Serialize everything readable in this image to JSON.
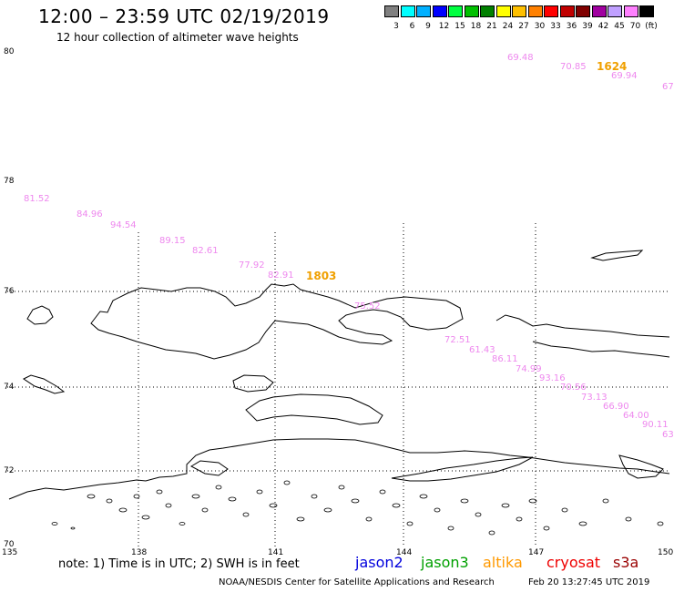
{
  "header": {
    "title": "12:00 – 23:59 UTC 02/19/2019",
    "subtitle": "12 hour collection of altimeter wave heights"
  },
  "colorbar": {
    "unit": "(ft)",
    "swatches": [
      {
        "color": "#808080",
        "label": "3"
      },
      {
        "color": "#00ffff",
        "label": "6"
      },
      {
        "color": "#00b0ff",
        "label": "9"
      },
      {
        "color": "#0000ff",
        "label": "12"
      },
      {
        "color": "#00ff40",
        "label": "15"
      },
      {
        "color": "#00c000",
        "label": "18"
      },
      {
        "color": "#008000",
        "label": "21"
      },
      {
        "color": "#ffff00",
        "label": "24"
      },
      {
        "color": "#ffc000",
        "label": "27"
      },
      {
        "color": "#ff8000",
        "label": "30"
      },
      {
        "color": "#ff0000",
        "label": "33"
      },
      {
        "color": "#c00000",
        "label": "36"
      },
      {
        "color": "#800000",
        "label": "39"
      },
      {
        "color": "#a000a0",
        "label": "42"
      },
      {
        "color": "#c0a0ff",
        "label": "45"
      },
      {
        "color": "#ff80ff",
        "label": "70"
      },
      {
        "color": "#000000",
        "label": ""
      }
    ]
  },
  "map": {
    "lat_labels": [
      "80",
      "78",
      "76",
      "74",
      "72",
      "70"
    ],
    "lon_labels": [
      "135",
      "138",
      "141",
      "144",
      "147",
      "150"
    ]
  },
  "swh_readings": [
    "69.48",
    "70.85",
    "69.94",
    "67",
    "81.52",
    "84.96",
    "94.54",
    "89.15",
    "82.61",
    "77.92",
    "82.91",
    "75.52",
    "72.51",
    "61.43",
    "86.11",
    "74.99",
    "93.16",
    "70.56",
    "73.13",
    "66.90",
    "64.00",
    "90.11",
    "63"
  ],
  "pass_times": [
    "1624",
    "1803"
  ],
  "footer": {
    "note": "note:  1) Time is in UTC;  2) SWH is in feet",
    "satellites": [
      {
        "name": "jason2",
        "color": "#0000dd"
      },
      {
        "name": "jason3",
        "color": "#00a000"
      },
      {
        "name": "altika",
        "color": "#ff9900"
      },
      {
        "name": "cryosat",
        "color": "#ee0000"
      },
      {
        "name": "s3a",
        "color": "#990000"
      }
    ],
    "credit": "NOAA/NESDIS Center for Satellite Applications and Research",
    "generated": "Feb 20 13:27:45 UTC 2019"
  },
  "colors": {
    "swh_text": "#ee88ee",
    "pass_time": "#f0a000",
    "coastline": "#000000",
    "gridline": "#000000"
  }
}
